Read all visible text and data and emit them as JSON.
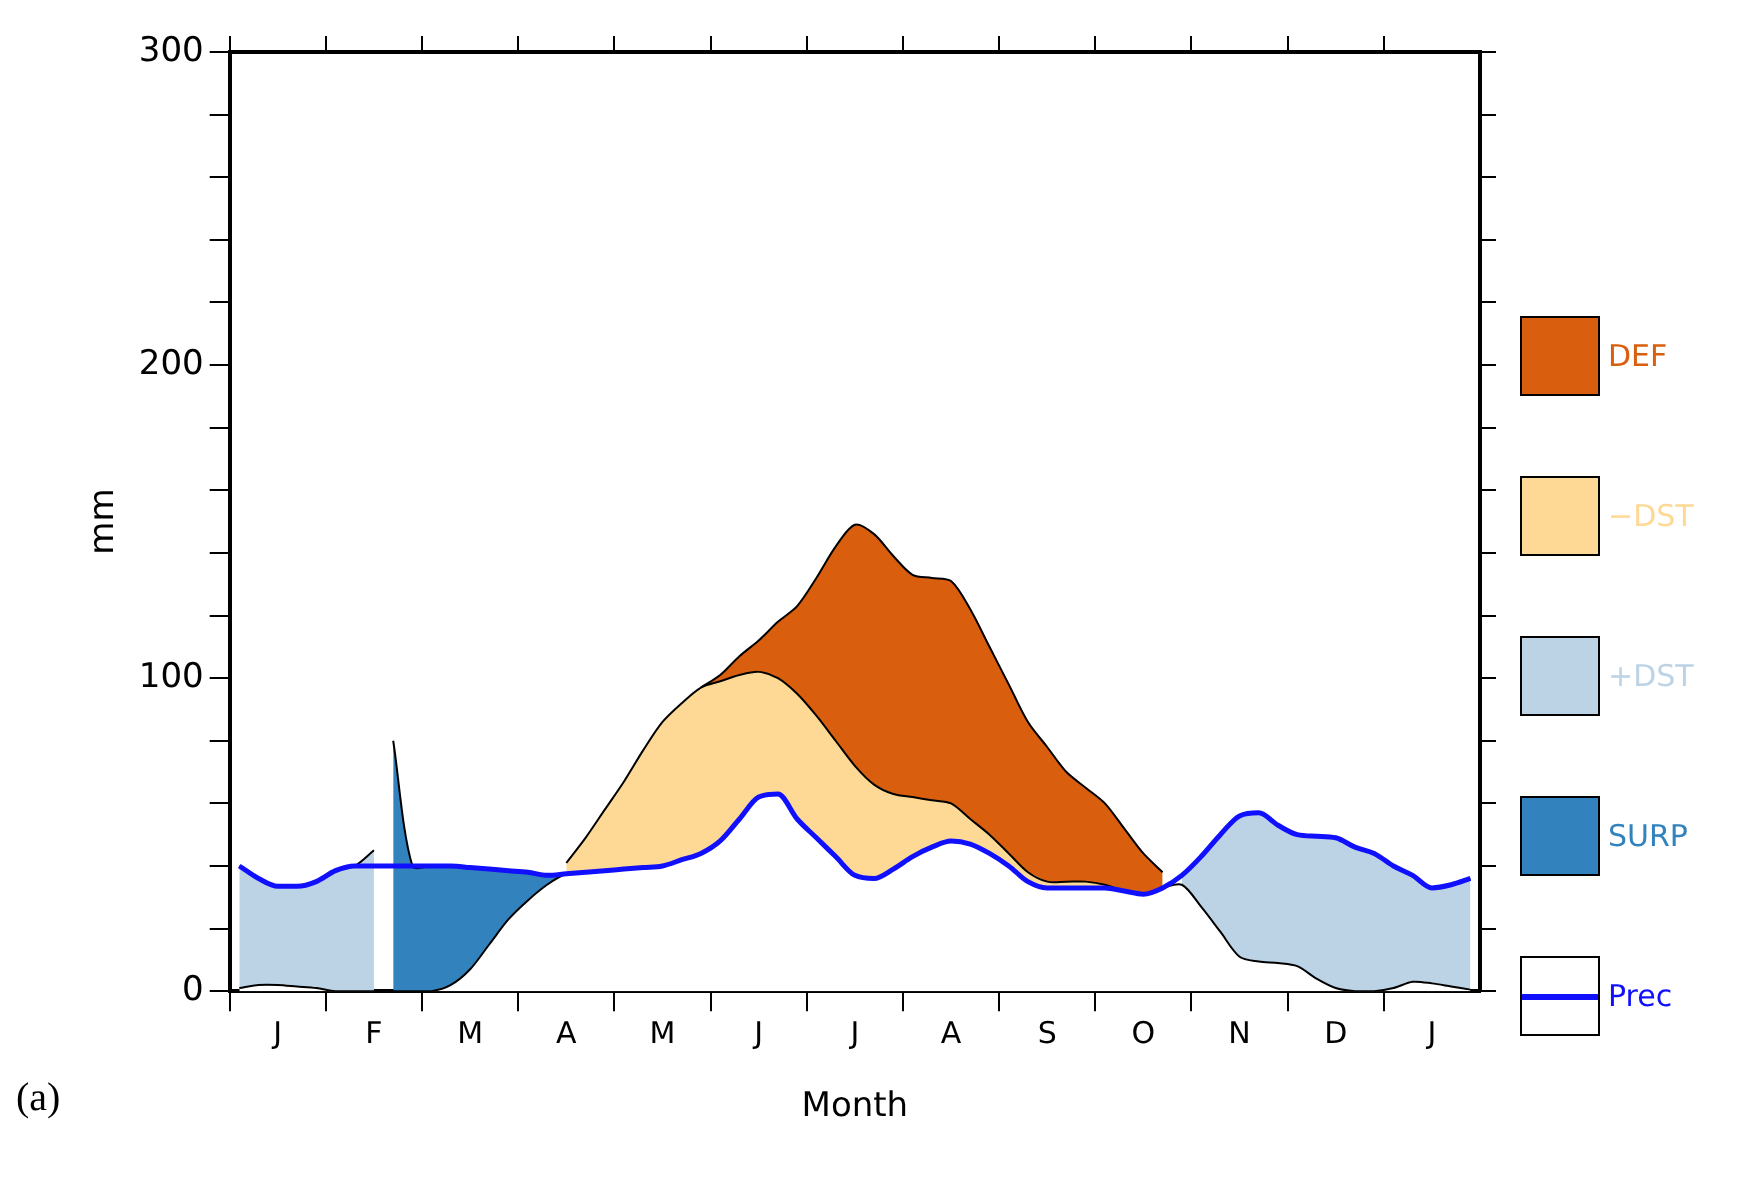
{
  "chart_data": {
    "type": "area",
    "stacked": true,
    "xlabel": "Month",
    "ylabel": "mm",
    "annotations": [
      "(a)"
    ],
    "categories": [
      null,
      null,
      "J",
      null,
      null,
      null,
      null,
      "F",
      null,
      null,
      null,
      null,
      "M",
      null,
      null,
      null,
      null,
      "A",
      null,
      null,
      null,
      null,
      "M",
      null,
      null,
      null,
      null,
      "J",
      null,
      null,
      null,
      null,
      "J",
      null,
      null,
      null,
      null,
      "A",
      null,
      null,
      null,
      null,
      "S",
      null,
      null,
      null,
      null,
      "O",
      null,
      null,
      null,
      null,
      "N",
      null,
      null,
      null,
      null,
      "D",
      null,
      null,
      null,
      null,
      "J",
      null,
      null
    ],
    "ylim": [
      0,
      300
    ],
    "yticks": [
      0,
      {
        "value": 20,
        "label": null
      },
      {
        "value": 40,
        "label": null
      },
      {
        "value": 60,
        "label": null
      },
      {
        "value": 80,
        "label": null
      },
      100,
      {
        "value": 120,
        "label": null
      },
      {
        "value": 140,
        "label": null
      },
      {
        "value": 160,
        "label": null
      },
      {
        "value": 180,
        "label": null
      },
      200,
      {
        "value": 220,
        "label": null
      },
      {
        "value": 240,
        "label": null
      },
      {
        "value": 260,
        "label": null
      },
      {
        "value": 280,
        "label": null
      },
      300
    ],
    "grid": false,
    "legend": "right",
    "series": [
      {
        "color": "#ffffff",
        "values": [
          1,
          2,
          2,
          1.5,
          1,
          0,
          0,
          0,
          0,
          0,
          0,
          2,
          7,
          15,
          23,
          29,
          34,
          37.5,
          38,
          38.5,
          39,
          39.5,
          40,
          42,
          44,
          48,
          55,
          62,
          63,
          55,
          49,
          43,
          37,
          36,
          39,
          43,
          46,
          48,
          47,
          44,
          40,
          35,
          33,
          33,
          33,
          33,
          32,
          31,
          33,
          34,
          27,
          19,
          11,
          9.5,
          9,
          8,
          4,
          1,
          0,
          0,
          1,
          3,
          2.5,
          1.5,
          0.5
        ]
      },
      {
        "name": "SURP",
        "color": "#3182bd",
        "values": [
          null,
          null,
          null,
          null,
          null,
          null,
          null,
          null,
          80,
          40,
          40,
          38,
          32.5,
          24,
          15.5,
          9,
          3,
          0,
          null,
          null,
          null,
          null,
          null,
          null,
          null,
          null,
          null,
          null,
          null,
          null,
          null,
          null,
          null,
          null,
          null,
          null,
          null,
          null,
          null,
          null,
          null,
          null,
          null,
          null,
          null,
          null,
          null,
          null,
          null,
          null,
          null,
          null,
          null,
          null,
          null,
          null,
          null,
          null,
          null,
          null,
          null,
          null,
          null,
          null,
          null
        ]
      },
      {
        "name": "+DST",
        "color": "#bcd3e6",
        "values": [
          39,
          34,
          31.5,
          32,
          34,
          38.5,
          40,
          45,
          null,
          null,
          null,
          null,
          null,
          null,
          null,
          null,
          null,
          null,
          null,
          null,
          null,
          null,
          null,
          null,
          null,
          null,
          null,
          null,
          null,
          null,
          null,
          null,
          null,
          null,
          null,
          null,
          null,
          null,
          null,
          null,
          null,
          null,
          null,
          null,
          null,
          null,
          null,
          null,
          null,
          3,
          16,
          31,
          45,
          47.5,
          44,
          42,
          45.5,
          48,
          46,
          44,
          39,
          34,
          30.5,
          32.5,
          35.5
        ]
      },
      {
        "name": "−DST",
        "color": "#fdd995",
        "values": [
          null,
          null,
          null,
          null,
          null,
          null,
          null,
          null,
          null,
          null,
          null,
          null,
          null,
          null,
          null,
          null,
          null,
          3.5,
          11,
          19.5,
          28,
          37.5,
          46,
          50,
          53,
          51,
          46,
          40,
          37,
          40,
          39,
          37,
          35,
          30,
          24,
          19,
          15,
          12,
          8,
          6,
          4,
          3,
          2,
          2,
          2,
          1,
          0,
          0,
          0,
          null,
          null,
          null,
          null,
          null,
          null,
          null,
          null,
          null,
          null,
          null,
          null,
          null,
          null,
          null,
          null
        ]
      },
      {
        "name": "DEF",
        "color": "#d95f0e",
        "values": [
          null,
          null,
          null,
          null,
          null,
          null,
          null,
          null,
          null,
          null,
          null,
          null,
          null,
          null,
          null,
          null,
          null,
          null,
          null,
          null,
          null,
          null,
          null,
          null,
          0,
          2,
          6,
          10,
          18,
          28,
          44,
          62,
          77,
          80,
          76,
          71,
          71,
          71,
          67,
          60,
          54,
          48,
          43,
          35,
          30,
          26,
          20,
          13,
          5,
          null,
          null,
          null,
          null,
          null,
          null,
          null,
          null,
          null,
          null,
          null,
          null,
          null,
          null,
          null,
          null
        ]
      },
      {
        "name": "Prec",
        "type": "line",
        "color": "#1010ff",
        "values": [
          40,
          36,
          33.5,
          33.5,
          35,
          38.5,
          40,
          40,
          40,
          40,
          40,
          40,
          39.5,
          39,
          38.5,
          38,
          37,
          37.5,
          38,
          38.5,
          39,
          39.5,
          40,
          42,
          44,
          48,
          55,
          62,
          63,
          55,
          49,
          43,
          37,
          36,
          39,
          43,
          46,
          48,
          47,
          44,
          40,
          35,
          33,
          33,
          33,
          33,
          32,
          31,
          33,
          37,
          43,
          50,
          56,
          57,
          53,
          50,
          49.5,
          49,
          46,
          44,
          40,
          37,
          33,
          34,
          36
        ]
      }
    ]
  }
}
